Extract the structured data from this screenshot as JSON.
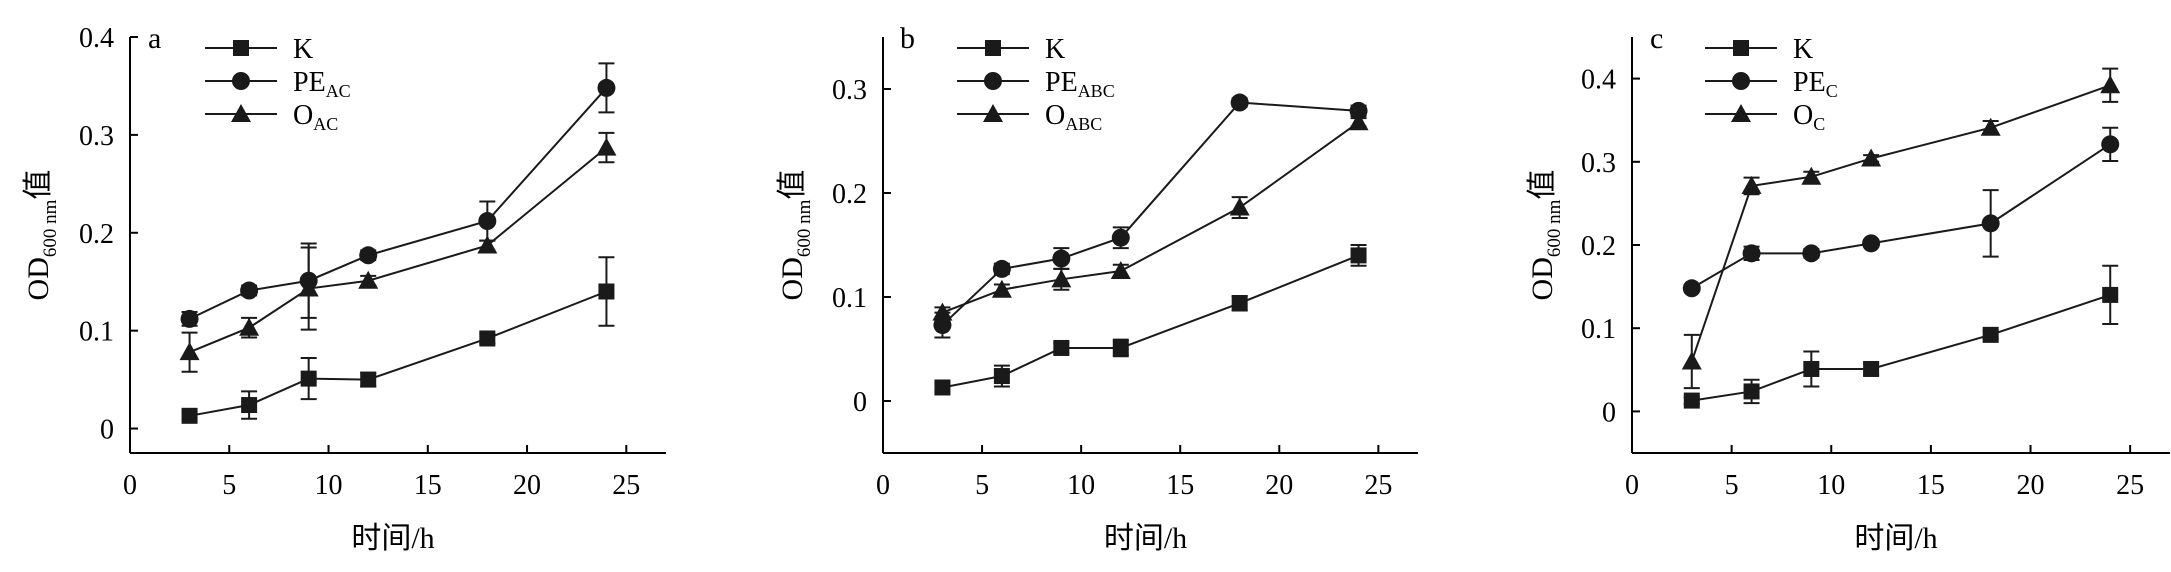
{
  "chart_data": [
    {
      "panel_label": "a",
      "type": "line",
      "xlabel": "时间/h",
      "ylabel": {
        "main": "OD",
        "sub": "600 nm",
        "suffix": "值"
      },
      "x": [
        3,
        6,
        9,
        12,
        18,
        24
      ],
      "xlim": [
        0,
        27
      ],
      "xticks": [
        0,
        5,
        10,
        15,
        20,
        25
      ],
      "ylim": [
        -0.025,
        0.4
      ],
      "yticks": [
        0,
        0.1,
        0.2,
        0.3,
        0.4
      ],
      "ytick_labels": [
        "0",
        "0.1",
        "0.2",
        "0.3",
        "0.4"
      ],
      "legend_position": "top-left",
      "series": [
        {
          "name": "K",
          "name_sub": "",
          "marker": "square",
          "values": [
            0.013,
            0.024,
            0.051,
            0.05,
            0.092,
            0.14
          ],
          "errors": [
            0.004,
            0.014,
            0.021,
            0.007,
            0.005,
            0.035
          ]
        },
        {
          "name": "PE",
          "name_sub": "AC",
          "marker": "circle",
          "values": [
            0.112,
            0.141,
            0.151,
            0.177,
            0.212,
            0.348
          ],
          "errors": [
            0.007,
            0.005,
            0.038,
            0.005,
            0.02,
            0.025
          ]
        },
        {
          "name": "O",
          "name_sub": "AC",
          "marker": "triangle",
          "values": [
            0.078,
            0.103,
            0.143,
            0.151,
            0.187,
            0.287
          ],
          "errors": [
            0.02,
            0.01,
            0.042,
            0.005,
            0.005,
            0.015
          ]
        }
      ]
    },
    {
      "panel_label": "b",
      "type": "line",
      "xlabel": "时间/h",
      "ylabel": {
        "main": "OD",
        "sub": "600 nm",
        "suffix": "值"
      },
      "x": [
        3,
        6,
        9,
        12,
        18,
        24
      ],
      "xlim": [
        0,
        27
      ],
      "xticks": [
        0,
        5,
        10,
        15,
        20,
        25
      ],
      "ylim": [
        -0.05,
        0.35
      ],
      "yticks": [
        0,
        0.1,
        0.2,
        0.3
      ],
      "ytick_labels": [
        "0",
        "0.1",
        "0.2",
        "0.3"
      ],
      "legend_position": "top-left",
      "series": [
        {
          "name": "K",
          "name_sub": "",
          "marker": "square",
          "values": [
            0.013,
            0.024,
            0.051,
            0.051,
            0.094,
            0.14
          ],
          "errors": [
            0.004,
            0.01,
            0.005,
            0.008,
            0.007,
            0.01
          ]
        },
        {
          "name": "PE",
          "name_sub": "ABC",
          "marker": "circle",
          "values": [
            0.073,
            0.127,
            0.137,
            0.157,
            0.287,
            0.279
          ],
          "errors": [
            0.012,
            0.005,
            0.01,
            0.01,
            0.004,
            0.005
          ]
        },
        {
          "name": "O",
          "name_sub": "ABC",
          "marker": "triangle",
          "values": [
            0.085,
            0.107,
            0.117,
            0.125,
            0.186,
            0.268
          ],
          "errors": [
            0.005,
            0.005,
            0.01,
            0.006,
            0.01,
            0.004
          ]
        }
      ]
    },
    {
      "panel_label": "c",
      "type": "line",
      "xlabel": "时间/h",
      "ylabel": {
        "main": "OD",
        "sub": "600 nm",
        "suffix": "值"
      },
      "x": [
        3,
        6,
        9,
        12,
        18,
        24
      ],
      "xlim": [
        0,
        27
      ],
      "xticks": [
        0,
        5,
        10,
        15,
        20,
        25
      ],
      "ylim": [
        -0.05,
        0.45
      ],
      "yticks": [
        0,
        0.1,
        0.2,
        0.3,
        0.4
      ],
      "ytick_labels": [
        "0",
        "0.1",
        "0.2",
        "0.3",
        "0.4"
      ],
      "legend_position": "top-left",
      "series": [
        {
          "name": "K",
          "name_sub": "",
          "marker": "square",
          "values": [
            0.013,
            0.024,
            0.051,
            0.051,
            0.092,
            0.14
          ],
          "errors": [
            0.004,
            0.014,
            0.021,
            0.007,
            0.005,
            0.035
          ]
        },
        {
          "name": "PE",
          "name_sub": "C",
          "marker": "circle",
          "values": [
            0.148,
            0.19,
            0.19,
            0.202,
            0.226,
            0.321
          ],
          "errors": [
            0.003,
            0.008,
            0.005,
            0.004,
            0.04,
            0.02
          ]
        },
        {
          "name": "O",
          "name_sub": "C",
          "marker": "triangle",
          "values": [
            0.06,
            0.271,
            0.282,
            0.304,
            0.341,
            0.392
          ],
          "errors": [
            0.032,
            0.01,
            0.006,
            0.004,
            0.008,
            0.02
          ]
        }
      ]
    }
  ]
}
